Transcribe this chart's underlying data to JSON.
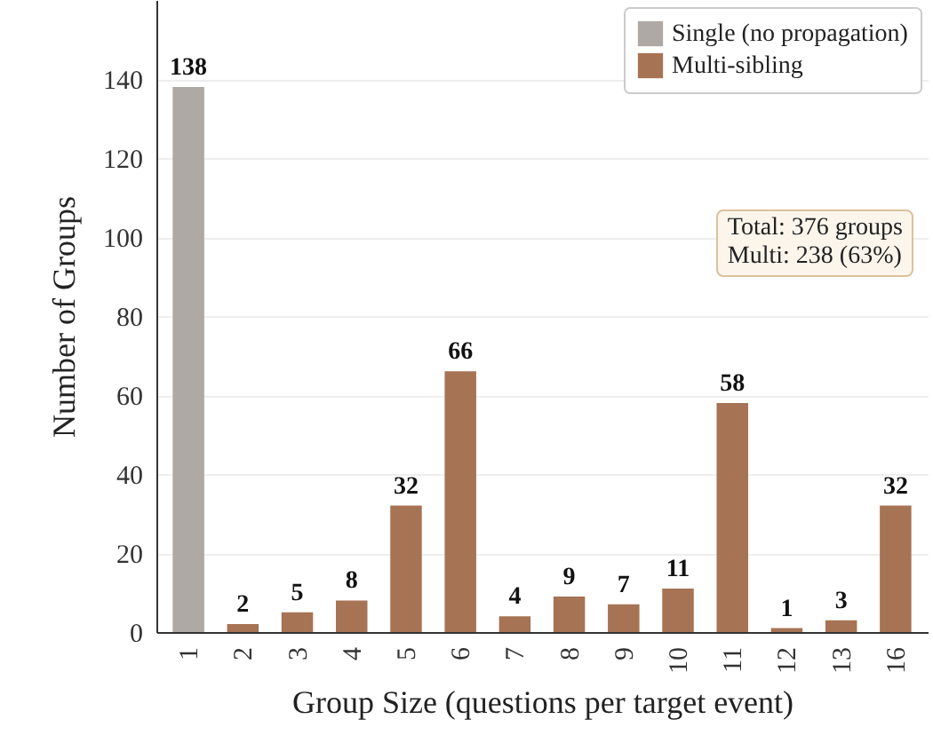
{
  "chart_data": {
    "type": "bar",
    "xlabel": "Group Size (questions per target event)",
    "ylabel": "Number of Groups",
    "categories": [
      "1",
      "2",
      "3",
      "4",
      "5",
      "6",
      "7",
      "8",
      "9",
      "10",
      "11",
      "12",
      "13",
      "16"
    ],
    "series": [
      {
        "name": "Single (no propagation)",
        "color": "#aea9a4",
        "values": [
          138,
          null,
          null,
          null,
          null,
          null,
          null,
          null,
          null,
          null,
          null,
          null,
          null,
          null
        ]
      },
      {
        "name": "Multi-sibling",
        "color": "#a67454",
        "values": [
          null,
          2,
          5,
          8,
          32,
          66,
          4,
          9,
          7,
          11,
          58,
          1,
          3,
          32
        ]
      }
    ],
    "ylim": [
      0,
      160
    ],
    "yticks": [
      0,
      20,
      40,
      60,
      80,
      100,
      120,
      140
    ],
    "grid": "y",
    "legend": "top right",
    "data_labels": true,
    "annotations": [
      "Total: 376 groups\nMulti: 238 (63%)"
    ]
  }
}
